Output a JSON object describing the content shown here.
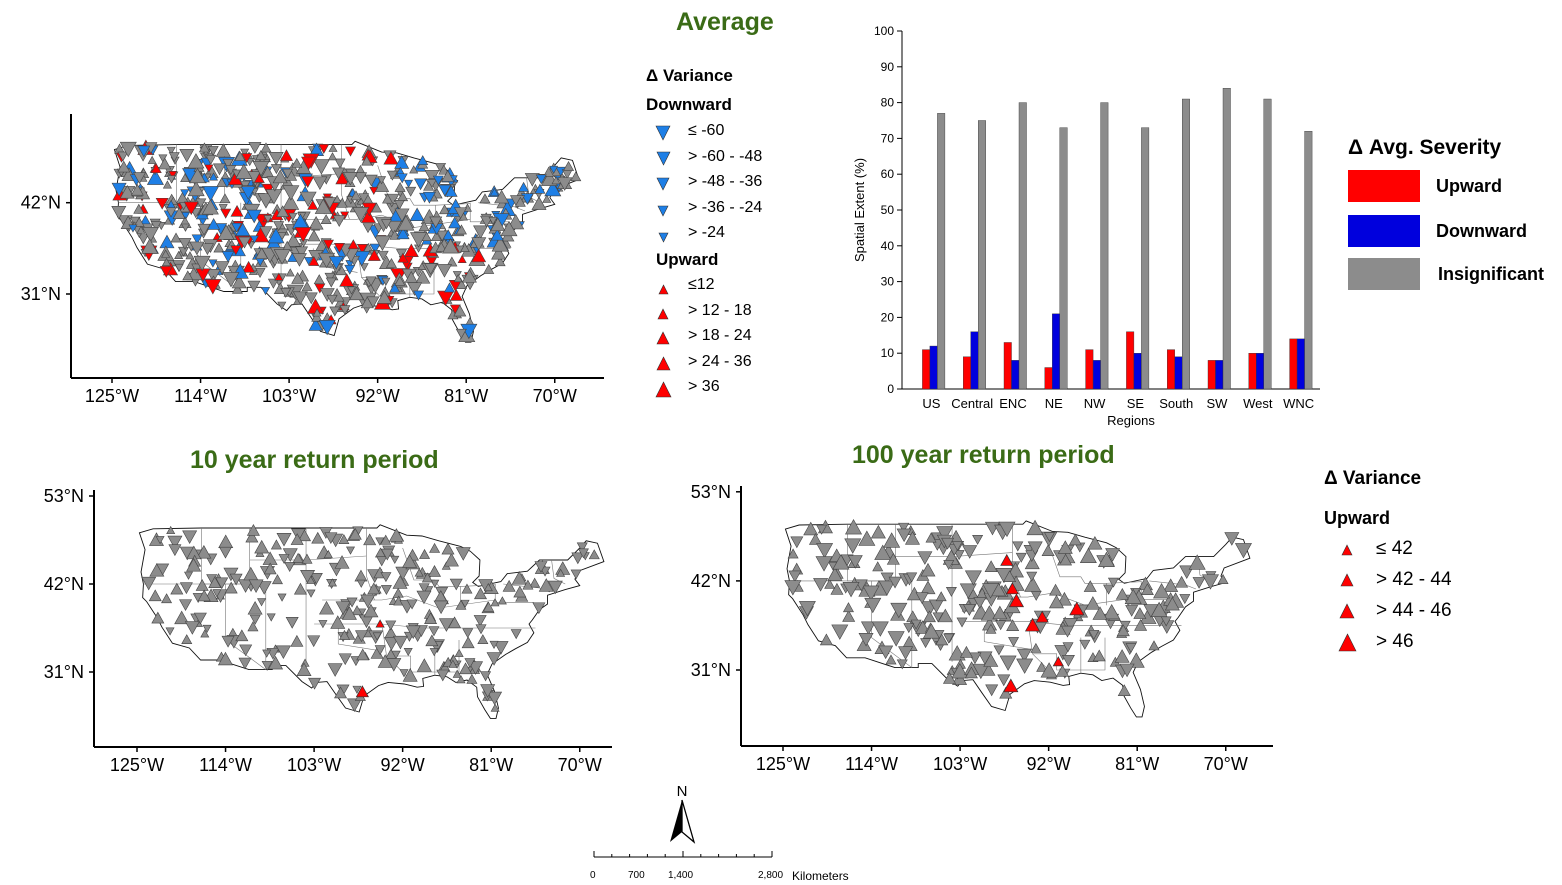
{
  "panels": {
    "average": {
      "title": "Average"
    },
    "ten_year": {
      "title": "10 year return period"
    },
    "hundred_year": {
      "title": "100 year return period"
    }
  },
  "map_axes": {
    "lon_ticks": [
      "125°W",
      "114°W",
      "103°W",
      "92°W",
      "81°W",
      "70°W"
    ],
    "lat_ticks_top": [
      "42°N",
      "31°N"
    ],
    "lat_ticks_bottom": [
      "53°N",
      "42°N",
      "31°N"
    ]
  },
  "legend_average": {
    "title": "Δ Variance",
    "downward_label": "Downward",
    "downward_items": [
      "≤ -60",
      "> -60 - -48",
      "> -48 - -36",
      "> -36 - -24",
      "> -24"
    ],
    "upward_label": "Upward",
    "upward_items": [
      "≤12",
      "> 12 - 18",
      "> 18 - 24",
      "> 24 - 36",
      "> 36"
    ]
  },
  "legend_return": {
    "title": "Δ Variance",
    "upward_label": "Upward",
    "upward_items": [
      "≤ 42",
      "> 42 - 44",
      "> 44 - 46",
      "> 46"
    ]
  },
  "severity_legend": {
    "title": "Δ Avg. Severity",
    "items": [
      {
        "label": "Upward",
        "color": "#ff0000"
      },
      {
        "label": "Downward",
        "color": "#0000dd"
      },
      {
        "label": "Insignificant",
        "color": "#8c8c8c"
      }
    ]
  },
  "colors": {
    "upward": "#ff0000",
    "downward": "#1e7fe6",
    "insignificant": "#8c8c8c",
    "title_green": "#3a6b16"
  },
  "scale_bar": {
    "north_label": "N",
    "labels": [
      "0",
      "700",
      "1,400",
      "2,800"
    ],
    "units": "Kilometers"
  },
  "chart_data": {
    "type": "bar",
    "categories": [
      "US",
      "Central",
      "ENC",
      "NE",
      "NW",
      "SE",
      "South",
      "SW",
      "West",
      "WNC"
    ],
    "series": [
      {
        "name": "Upward",
        "values": [
          11,
          9,
          13,
          6,
          11,
          16,
          11,
          8,
          10,
          14
        ]
      },
      {
        "name": "Downward",
        "values": [
          12,
          16,
          8,
          21,
          8,
          10,
          9,
          8,
          10,
          14
        ]
      },
      {
        "name": "Insignificant",
        "values": [
          77,
          75,
          80,
          73,
          80,
          73,
          81,
          84,
          81,
          72
        ]
      }
    ],
    "xlabel": "Regions",
    "ylabel": "Spatial Extent (%)",
    "ylim": [
      0,
      100
    ],
    "yticks": [
      0,
      10,
      20,
      30,
      40,
      50,
      60,
      70,
      80,
      90,
      100
    ]
  }
}
